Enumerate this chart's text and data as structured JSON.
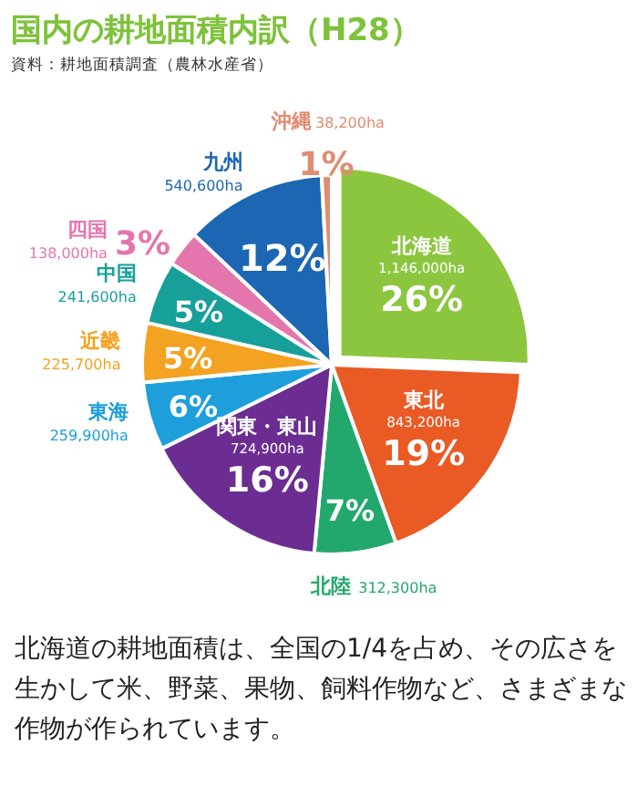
{
  "chart_data": {
    "type": "pie",
    "title": "国内の耕地面積内訳（H28）",
    "subtitle": "資料：耕地面積調査（農林水産省）",
    "categories": [
      "北海道",
      "東北",
      "北陸",
      "関東・東山",
      "東海",
      "近畿",
      "中国",
      "四国",
      "九州",
      "沖縄"
    ],
    "values": [
      1146000,
      843200,
      312300,
      724900,
      259900,
      225700,
      241600,
      138000,
      540600,
      38200
    ],
    "value_labels": [
      "1,146,000ha",
      "843,200ha",
      "312,300ha",
      "724,900ha",
      "259,900ha",
      "225,700ha",
      "241,600ha",
      "138,000ha",
      "540,600ha",
      "38,200ha"
    ],
    "colors": [
      "#8cc63f",
      "#ea5a24",
      "#22a86c",
      "#6b2d91",
      "#1e9fdc",
      "#f4a221",
      "#17a09a",
      "#e576ad",
      "#1c66b3",
      "#e08c70"
    ],
    "annotations": [
      {
        "text": "26%",
        "x": "北海道"
      },
      {
        "text": "19%",
        "x": "東北"
      },
      {
        "text": "7%",
        "x": "北陸"
      },
      {
        "text": "16%",
        "x": "関東・東山"
      },
      {
        "text": "6%",
        "x": "東海"
      },
      {
        "text": "5%",
        "x": "近畿"
      },
      {
        "text": "5%",
        "x": "中国"
      },
      {
        "text": "3%",
        "x": "四国"
      },
      {
        "text": "12%",
        "x": "九州"
      },
      {
        "text": "1%",
        "x": "沖縄"
      },
      "北海道の耕地面積は、全国の1/4を占め、その広さを生かして米、野菜、果物、飼料作物など、さまざまな作物が作られています。"
    ]
  }
}
